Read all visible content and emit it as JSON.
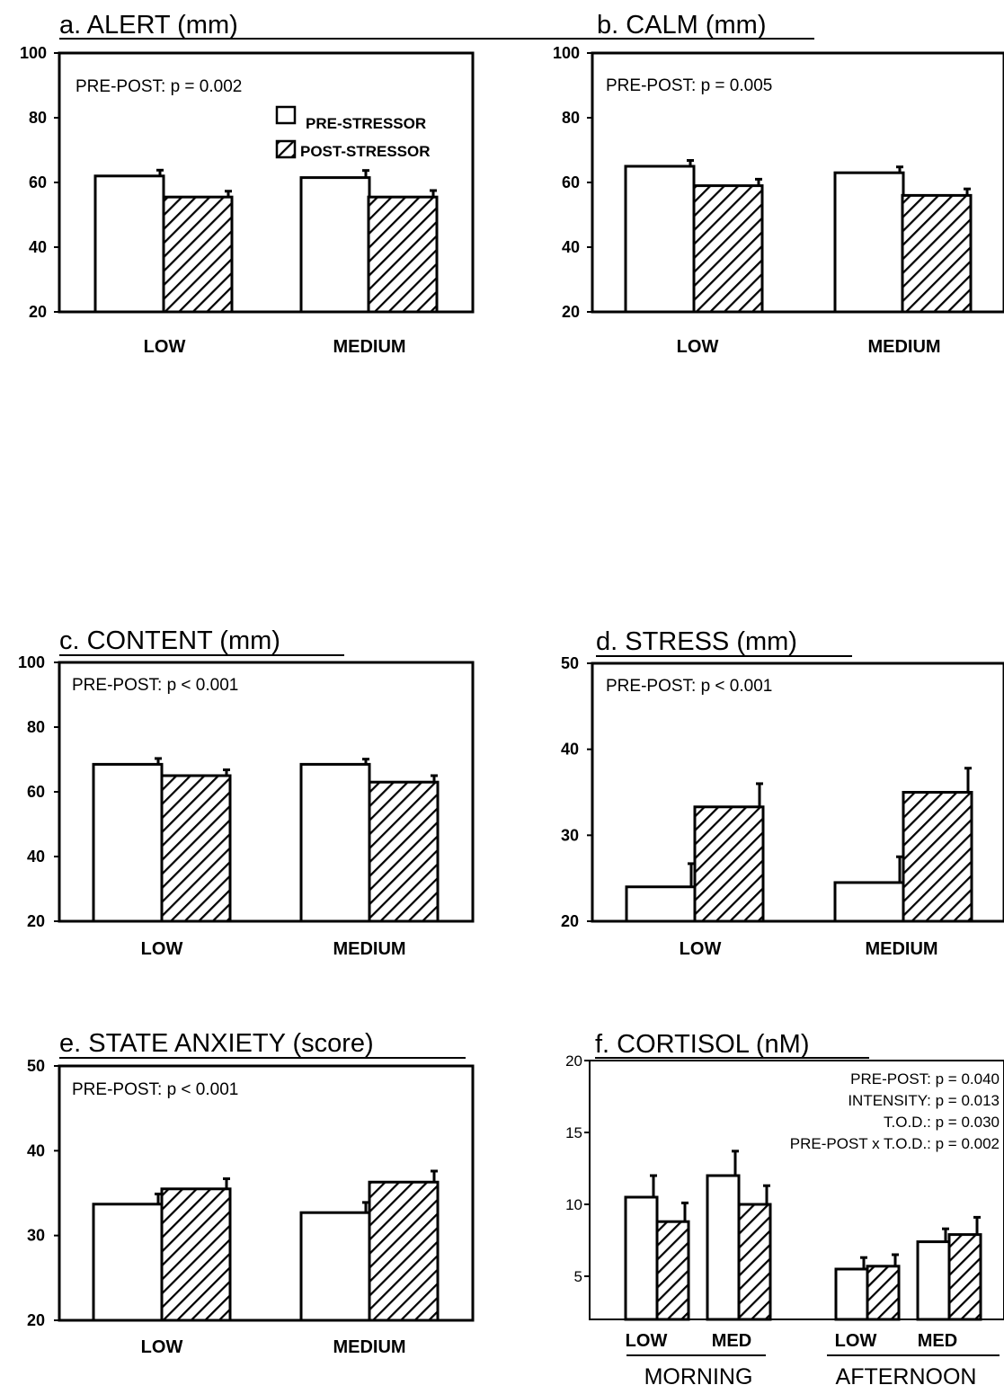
{
  "figure": {
    "legend": {
      "pre": "PRE-STRESSOR",
      "post": "POST-STRESSOR"
    },
    "tod_labels": [
      "MORNING",
      "AFTERNOON"
    ]
  },
  "chart_data": [
    {
      "id": "a",
      "type": "bar",
      "title": "a. ALERT (mm)",
      "categories": [
        "LOW",
        "MEDIUM"
      ],
      "series": [
        {
          "name": "PRE-STRESSOR",
          "values": [
            62,
            61.5
          ],
          "errors": [
            1.8,
            2.2
          ]
        },
        {
          "name": "POST-STRESSOR",
          "values": [
            55.5,
            55.5
          ],
          "errors": [
            1.8,
            2.0
          ]
        }
      ],
      "ylim": [
        20,
        100
      ],
      "yticks": [
        20,
        40,
        60,
        80,
        100
      ],
      "annotations": [
        "PRE-POST: p = 0.002"
      ]
    },
    {
      "id": "b",
      "type": "bar",
      "title": "b. CALM (mm)",
      "categories": [
        "LOW",
        "MEDIUM"
      ],
      "series": [
        {
          "name": "PRE-STRESSOR",
          "values": [
            65,
            63
          ],
          "errors": [
            1.8,
            1.8
          ]
        },
        {
          "name": "POST-STRESSOR",
          "values": [
            59,
            56
          ],
          "errors": [
            2.0,
            2.0
          ]
        }
      ],
      "ylim": [
        20,
        100
      ],
      "yticks": [
        20,
        40,
        60,
        80,
        100
      ],
      "annotations": [
        "PRE-POST: p = 0.005"
      ]
    },
    {
      "id": "c",
      "type": "bar",
      "title": "c. CONTENT (mm)",
      "categories": [
        "LOW",
        "MEDIUM"
      ],
      "series": [
        {
          "name": "PRE-STRESSOR",
          "values": [
            68.5,
            68.5
          ],
          "errors": [
            1.8,
            1.6
          ]
        },
        {
          "name": "POST-STRESSOR",
          "values": [
            65,
            63
          ],
          "errors": [
            1.8,
            2.0
          ]
        }
      ],
      "ylim": [
        20,
        100
      ],
      "yticks": [
        20,
        40,
        60,
        80,
        100
      ],
      "annotations": [
        "PRE-POST: p < 0.001"
      ]
    },
    {
      "id": "d",
      "type": "bar",
      "title": "d. STRESS (mm)",
      "categories": [
        "LOW",
        "MEDIUM"
      ],
      "series": [
        {
          "name": "PRE-STRESSOR",
          "values": [
            24,
            24.5
          ],
          "errors": [
            2.7,
            3.0
          ]
        },
        {
          "name": "POST-STRESSOR",
          "values": [
            33.3,
            35
          ],
          "errors": [
            2.7,
            2.8
          ]
        }
      ],
      "ylim": [
        20,
        50
      ],
      "yticks": [
        20,
        30,
        40,
        50
      ],
      "annotations": [
        "PRE-POST: p < 0.001"
      ]
    },
    {
      "id": "e",
      "type": "bar",
      "title": "e. STATE ANXIETY (score)",
      "categories": [
        "LOW",
        "MEDIUM"
      ],
      "series": [
        {
          "name": "PRE-STRESSOR",
          "values": [
            33.7,
            32.7
          ],
          "errors": [
            1.2,
            1.2
          ]
        },
        {
          "name": "POST-STRESSOR",
          "values": [
            35.5,
            36.3
          ],
          "errors": [
            1.2,
            1.3
          ]
        }
      ],
      "ylim": [
        20,
        50
      ],
      "yticks": [
        20,
        30,
        40,
        50
      ],
      "annotations": [
        "PRE-POST: p < 0.001"
      ]
    },
    {
      "id": "f",
      "type": "bar",
      "title": "f. CORTISOL (nM)",
      "categories": [
        "LOW",
        "MED",
        "LOW",
        "MED"
      ],
      "groups": [
        "MORNING",
        "MORNING",
        "AFTERNOON",
        "AFTERNOON"
      ],
      "series": [
        {
          "name": "PRE-STRESSOR",
          "values": [
            10.5,
            12,
            5.5,
            7.4
          ],
          "errors": [
            1.5,
            1.7,
            0.8,
            0.9
          ]
        },
        {
          "name": "POST-STRESSOR",
          "values": [
            8.8,
            10,
            5.7,
            7.9
          ],
          "errors": [
            1.3,
            1.3,
            0.8,
            1.2
          ]
        }
      ],
      "ylim": [
        2,
        20
      ],
      "yticks": [
        5,
        10,
        15,
        20
      ],
      "annotations": [
        "PRE-POST: p = 0.040",
        "INTENSITY: p = 0.013",
        "T.O.D.: p = 0.030",
        "PRE-POST x T.O.D.: p = 0.002"
      ]
    }
  ]
}
